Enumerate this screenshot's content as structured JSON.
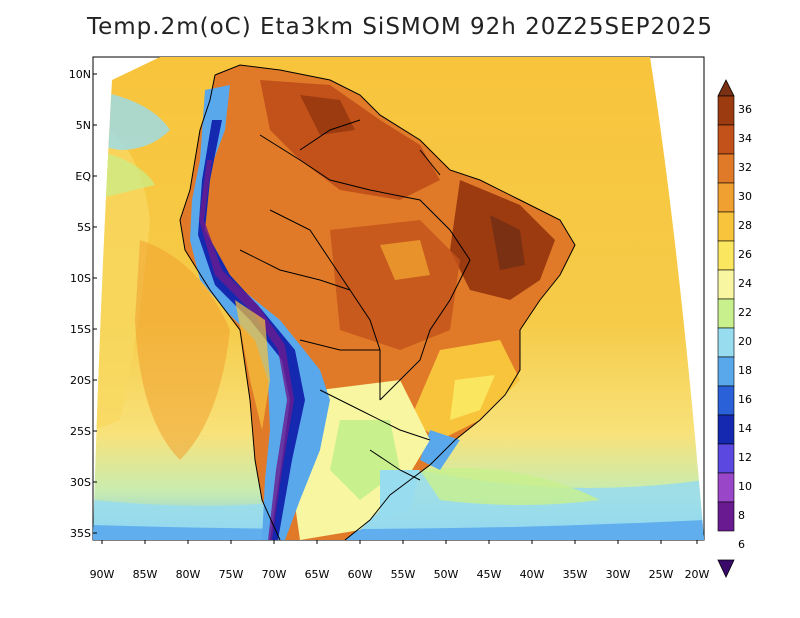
{
  "title": "Temp.2m(oC) Eta3km SiSMOM 92h 20Z25SEP2025",
  "lat_labels": [
    "10N",
    "5N",
    "EQ",
    "5S",
    "10S",
    "15S",
    "20S",
    "25S",
    "30S",
    "35S"
  ],
  "lon_labels": [
    "90W",
    "85W",
    "80W",
    "75W",
    "70W",
    "65W",
    "60W",
    "55W",
    "50W",
    "45W",
    "40W",
    "35W",
    "30W",
    "25W",
    "20W"
  ],
  "colorbar": {
    "labels": [
      "36",
      "34",
      "32",
      "30",
      "28",
      "26",
      "24",
      "22",
      "20",
      "18",
      "16",
      "14",
      "12",
      "10",
      "8",
      "6"
    ],
    "colors": [
      "#7a3012",
      "#9c3a10",
      "#c2521a",
      "#e07a28",
      "#f0a030",
      "#f8c43c",
      "#fbe660",
      "#f8f6a0",
      "#c8f08c",
      "#98dcf0",
      "#5aa8ec",
      "#2a60d8",
      "#1428b0",
      "#5a48e0",
      "#9a46c8",
      "#6a1a90",
      "#3a0a6a"
    ]
  }
}
